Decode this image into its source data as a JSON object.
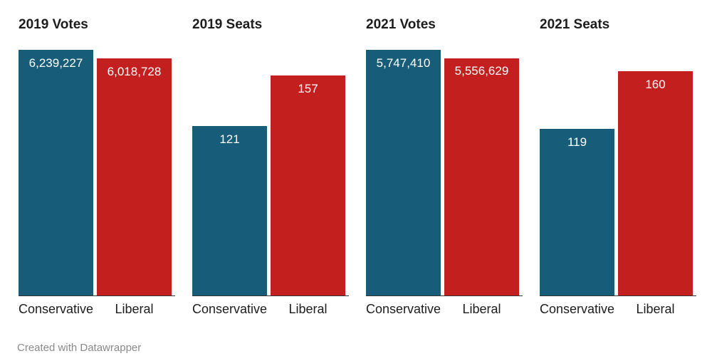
{
  "footer": {
    "credit": "Created with Datawrapper"
  },
  "colors": {
    "Conservative": "#175d7a",
    "Liberal": "#c41f1f"
  },
  "chart_data": [
    {
      "type": "bar",
      "title": "2019 Votes",
      "categories": [
        "Conservative",
        "Liberal"
      ],
      "values": [
        6239227,
        6018728
      ],
      "value_labels": [
        "6,239,227",
        "6,018,728"
      ]
    },
    {
      "type": "bar",
      "title": "2019 Seats",
      "categories": [
        "Conservative",
        "Liberal"
      ],
      "values": [
        121,
        157
      ],
      "value_labels": [
        "121",
        "157"
      ]
    },
    {
      "type": "bar",
      "title": "2021 Votes",
      "categories": [
        "Conservative",
        "Liberal"
      ],
      "values": [
        5747410,
        5556629
      ],
      "value_labels": [
        "5,747,410",
        "5,556,629"
      ]
    },
    {
      "type": "bar",
      "title": "2021 Seats",
      "categories": [
        "Conservative",
        "Liberal"
      ],
      "values": [
        119,
        160
      ],
      "value_labels": [
        "119",
        "160"
      ]
    }
  ]
}
